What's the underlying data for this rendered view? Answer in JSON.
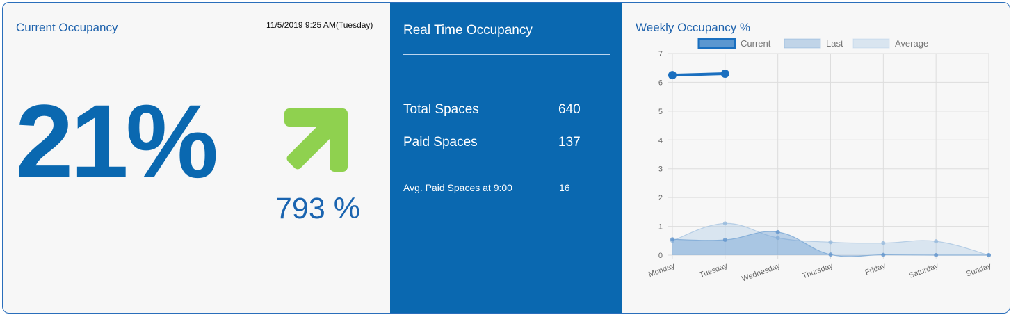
{
  "left": {
    "title": "Current Occupancy",
    "timestamp": "11/5/2019 9:25 AM(Tuesday)",
    "occupancy": "21%",
    "trend_icon": "arrow-up-right-icon",
    "trend_color": "#8fd14f",
    "change": "793 %"
  },
  "middle": {
    "title": "Real Time Occupancy",
    "total_label": "Total Spaces",
    "total_value": "640",
    "paid_label": "Paid Spaces",
    "paid_value": "137",
    "avg_label": "Avg. Paid Spaces at 9:00",
    "avg_value": "16"
  },
  "right": {
    "title": "Weekly Occupancy %"
  },
  "colors": {
    "brand_blue": "#0a68b0",
    "current": "#1a6fbf",
    "last": "#9ec1e3",
    "average": "#cfe0f0"
  },
  "chart_data": {
    "type": "area",
    "categories": [
      "Monday",
      "Tuesday",
      "Wednesday",
      "Thursday",
      "Friday",
      "Saturday",
      "Sunday"
    ],
    "ylim": [
      0,
      7
    ],
    "yticks": [
      "0",
      "1",
      "2",
      "3",
      "4",
      "5",
      "6",
      "7"
    ],
    "legend_position": "top",
    "grid": true,
    "series": [
      {
        "name": "Current",
        "values": [
          6.25,
          6.3,
          null,
          null,
          null,
          null,
          null
        ]
      },
      {
        "name": "Last",
        "values": [
          0.55,
          0.53,
          0.8,
          0.02,
          0.01,
          0.0,
          0.0
        ]
      },
      {
        "name": "Average",
        "values": [
          0.5,
          1.1,
          0.6,
          0.45,
          0.42,
          0.48,
          0.0
        ]
      }
    ]
  }
}
